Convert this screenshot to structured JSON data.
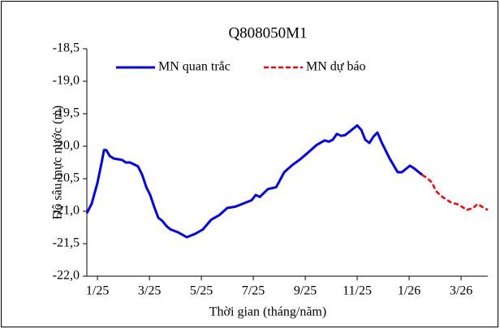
{
  "chart_data": {
    "type": "line",
    "title": "Q808050M1",
    "x_label": "Thời gian (tháng/năm)",
    "y_label": "Độ sâu mực nước (m)",
    "xlim": [
      -0.41,
      15.03
    ],
    "ylim": [
      -22.0,
      -18.5
    ],
    "xticks": [
      {
        "value": 0,
        "label": "1/25"
      },
      {
        "value": 2,
        "label": "3/25"
      },
      {
        "value": 4,
        "label": "5/25"
      },
      {
        "value": 6,
        "label": "7/25"
      },
      {
        "value": 8,
        "label": "9/25"
      },
      {
        "value": 10,
        "label": "11/25"
      },
      {
        "value": 12,
        "label": "1/26"
      },
      {
        "value": 14,
        "label": "3/26"
      }
    ],
    "yticks": [
      {
        "value": -18.5,
        "label": "-18,5"
      },
      {
        "value": -19.0,
        "label": "-19,0"
      },
      {
        "value": -19.5,
        "label": "-19,5"
      },
      {
        "value": -20.0,
        "label": "-20,0"
      },
      {
        "value": -20.5,
        "label": "-20,5"
      },
      {
        "value": -21.0,
        "label": "-21,0"
      },
      {
        "value": -21.5,
        "label": "-21,5"
      },
      {
        "value": -22.0,
        "label": "-22,0"
      }
    ],
    "grid": false,
    "legend": "top",
    "series": [
      {
        "name": "MN quan trắc",
        "color": "#0000ff",
        "dashed": false,
        "x": [
          -0.41,
          -0.22,
          0,
          0.16,
          0.25,
          0.34,
          0.47,
          0.63,
          0.78,
          0.94,
          1.09,
          1.25,
          1.41,
          1.56,
          1.72,
          1.88,
          2.03,
          2.19,
          2.34,
          2.5,
          2.66,
          2.81,
          3.13,
          3.44,
          3.75,
          4.06,
          4.38,
          4.69,
          5,
          5.31,
          5.63,
          5.94,
          6.09,
          6.25,
          6.56,
          6.88,
          7.19,
          7.5,
          7.81,
          8.13,
          8.44,
          8.75,
          8.91,
          9.06,
          9.22,
          9.38,
          9.53,
          9.69,
          10,
          10.16,
          10.31,
          10.47,
          10.63,
          10.78,
          10.94,
          11.25,
          11.56,
          11.72,
          12.03,
          12.19,
          12.5
        ],
        "values": [
          -21.03,
          -20.88,
          -20.56,
          -20.25,
          -20.06,
          -20.06,
          -20.15,
          -20.19,
          -20.2,
          -20.21,
          -20.25,
          -20.25,
          -20.28,
          -20.31,
          -20.44,
          -20.63,
          -20.75,
          -20.94,
          -21.1,
          -21.15,
          -21.23,
          -21.28,
          -21.33,
          -21.4,
          -21.35,
          -21.28,
          -21.13,
          -21.06,
          -20.95,
          -20.93,
          -20.88,
          -20.83,
          -20.75,
          -20.78,
          -20.66,
          -20.63,
          -20.4,
          -20.29,
          -20.2,
          -20.09,
          -19.98,
          -19.91,
          -19.93,
          -19.9,
          -19.81,
          -19.84,
          -19.83,
          -19.78,
          -19.68,
          -19.75,
          -19.9,
          -19.95,
          -19.85,
          -19.79,
          -19.94,
          -20.19,
          -20.4,
          -20.4,
          -20.3,
          -20.34,
          -20.44
        ]
      },
      {
        "name": "MN dự báo",
        "color": "#ff0000",
        "dashed": true,
        "x": [
          12.5,
          12.72,
          12.88,
          13.03,
          13.28,
          13.59,
          13.91,
          14.22,
          14.47,
          14.63,
          14.88,
          15.03
        ],
        "values": [
          -20.44,
          -20.5,
          -20.56,
          -20.69,
          -20.78,
          -20.86,
          -20.9,
          -20.98,
          -20.95,
          -20.89,
          -20.95,
          -20.98
        ]
      }
    ]
  }
}
